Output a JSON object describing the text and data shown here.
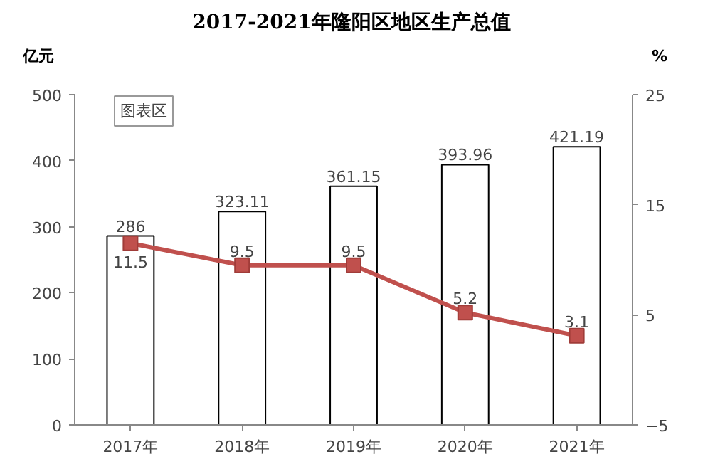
{
  "chart_data": {
    "type": "bar",
    "title": "2017-2021年隆阳区地区生产总值",
    "ylabel": "亿元",
    "y2label": "%",
    "categories": [
      "2017年",
      "2018年",
      "2019年",
      "2020年",
      "2021年"
    ],
    "series": [
      {
        "color": "#ffffff",
        "values": [
          286,
          323.11,
          361.15,
          393.96,
          421.19
        ]
      },
      {
        "type": "line",
        "axis": "y2",
        "color": "#c0504d",
        "marker": "square",
        "values": [
          11.5,
          9.5,
          9.5,
          5.2,
          3.1
        ]
      }
    ],
    "ylim": [
      0,
      500
    ],
    "yticks": [
      0,
      100,
      200,
      300,
      400,
      500
    ],
    "y2lim": [
      -5,
      25
    ],
    "y2ticks": [
      -5,
      5,
      15,
      25
    ],
    "grid": false,
    "data_labels": true,
    "annotations": [
      "图表区"
    ]
  }
}
